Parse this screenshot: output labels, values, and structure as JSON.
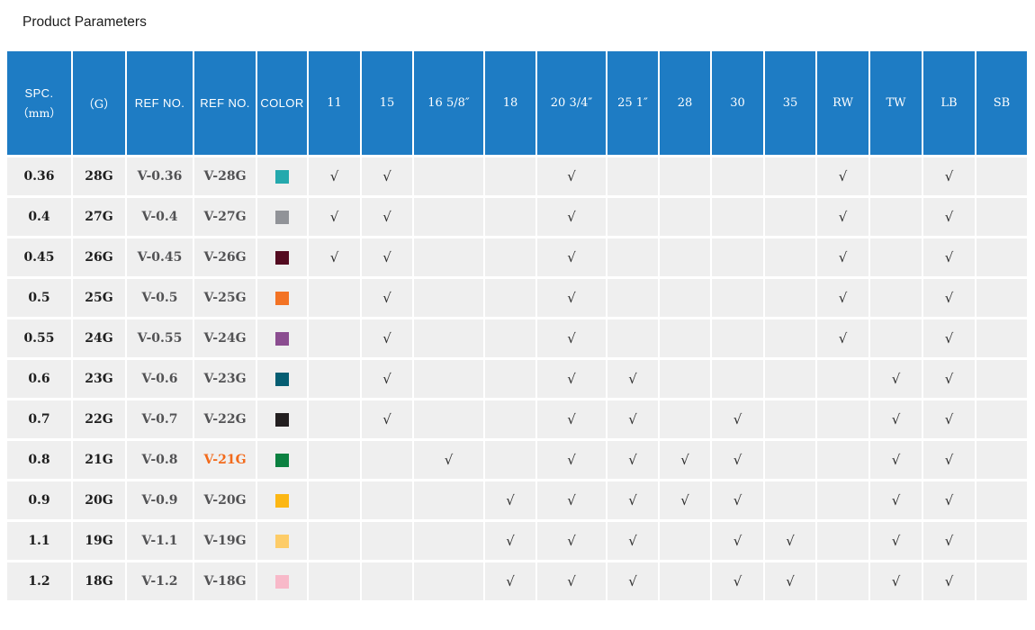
{
  "title": "Product Parameters",
  "colors": {
    "header_bg": "#1e7cc4",
    "cell_bg": "#efefef",
    "check_color": "#2e2e2e",
    "highlight_ref_color": "#f26a1b"
  },
  "table": {
    "check_mark": "√",
    "columns": [
      {
        "id": "spc",
        "label": "SPC.",
        "sub": "（mm）"
      },
      {
        "id": "g",
        "label": "（G）"
      },
      {
        "id": "ref1",
        "label": "REF NO."
      },
      {
        "id": "ref2",
        "label": "REF NO."
      },
      {
        "id": "color",
        "label": "COLOR"
      },
      {
        "id": "s11",
        "label": "11"
      },
      {
        "id": "s15",
        "label": "15"
      },
      {
        "id": "s16",
        "label": "16 5/8″"
      },
      {
        "id": "s18",
        "label": "18"
      },
      {
        "id": "s20",
        "label": "20 3/4″"
      },
      {
        "id": "s25",
        "label": "25 1″"
      },
      {
        "id": "s28",
        "label": "28"
      },
      {
        "id": "s30",
        "label": "30"
      },
      {
        "id": "s35",
        "label": "35"
      },
      {
        "id": "rw",
        "label": "RW"
      },
      {
        "id": "tw",
        "label": "TW"
      },
      {
        "id": "lb",
        "label": "LB"
      },
      {
        "id": "sb",
        "label": "SB"
      }
    ],
    "rows": [
      {
        "spc": "0.36",
        "g": "28G",
        "ref1": "V-0.36",
        "ref2": "V-28G",
        "ref2_highlight": false,
        "swatch": "#25a9ad",
        "checks": [
          "s11",
          "s15",
          "s20",
          "rw",
          "lb"
        ]
      },
      {
        "spc": "0.4",
        "g": "27G",
        "ref1": "V-0.4",
        "ref2": "V-27G",
        "ref2_highlight": false,
        "swatch": "#919398",
        "checks": [
          "s11",
          "s15",
          "s20",
          "rw",
          "lb"
        ]
      },
      {
        "spc": "0.45",
        "g": "26G",
        "ref1": "V-0.45",
        "ref2": "V-26G",
        "ref2_highlight": false,
        "swatch": "#530b20",
        "checks": [
          "s11",
          "s15",
          "s20",
          "rw",
          "lb"
        ]
      },
      {
        "spc": "0.5",
        "g": "25G",
        "ref1": "V-0.5",
        "ref2": "V-25G",
        "ref2_highlight": false,
        "swatch": "#f37324",
        "checks": [
          "s15",
          "s20",
          "rw",
          "lb"
        ]
      },
      {
        "spc": "0.55",
        "g": "24G",
        "ref1": "V-0.55",
        "ref2": "V-24G",
        "ref2_highlight": false,
        "swatch": "#8b4d90",
        "checks": [
          "s15",
          "s20",
          "rw",
          "lb"
        ]
      },
      {
        "spc": "0.6",
        "g": "23G",
        "ref1": "V-0.6",
        "ref2": "V-23G",
        "ref2_highlight": false,
        "swatch": "#055d72",
        "checks": [
          "s15",
          "s20",
          "s25",
          "tw",
          "lb"
        ]
      },
      {
        "spc": "0.7",
        "g": "22G",
        "ref1": "V-0.7",
        "ref2": "V-22G",
        "ref2_highlight": false,
        "swatch": "#231f20",
        "checks": [
          "s15",
          "s20",
          "s25",
          "s30",
          "tw",
          "lb"
        ]
      },
      {
        "spc": "0.8",
        "g": "21G",
        "ref1": "V-0.8",
        "ref2": "V-21G",
        "ref2_highlight": true,
        "swatch": "#0b8040",
        "checks": [
          "s16",
          "s20",
          "s25",
          "s28",
          "s30",
          "tw",
          "lb"
        ]
      },
      {
        "spc": "0.9",
        "g": "20G",
        "ref1": "V-0.9",
        "ref2": "V-20G",
        "ref2_highlight": false,
        "swatch": "#fcb714",
        "checks": [
          "s18",
          "s20",
          "s25",
          "s28",
          "s30",
          "tw",
          "lb"
        ]
      },
      {
        "spc": "1.1",
        "g": "19G",
        "ref1": "V-1.1",
        "ref2": "V-19G",
        "ref2_highlight": false,
        "swatch": "#fdcc68",
        "checks": [
          "s18",
          "s20",
          "s25",
          "s30",
          "s35",
          "tw",
          "lb"
        ]
      },
      {
        "spc": "1.2",
        "g": "18G",
        "ref1": "V-1.2",
        "ref2": "V-18G",
        "ref2_highlight": false,
        "swatch": "#f8b9c9",
        "checks": [
          "s18",
          "s20",
          "s25",
          "s30",
          "s35",
          "tw",
          "lb"
        ]
      }
    ]
  }
}
